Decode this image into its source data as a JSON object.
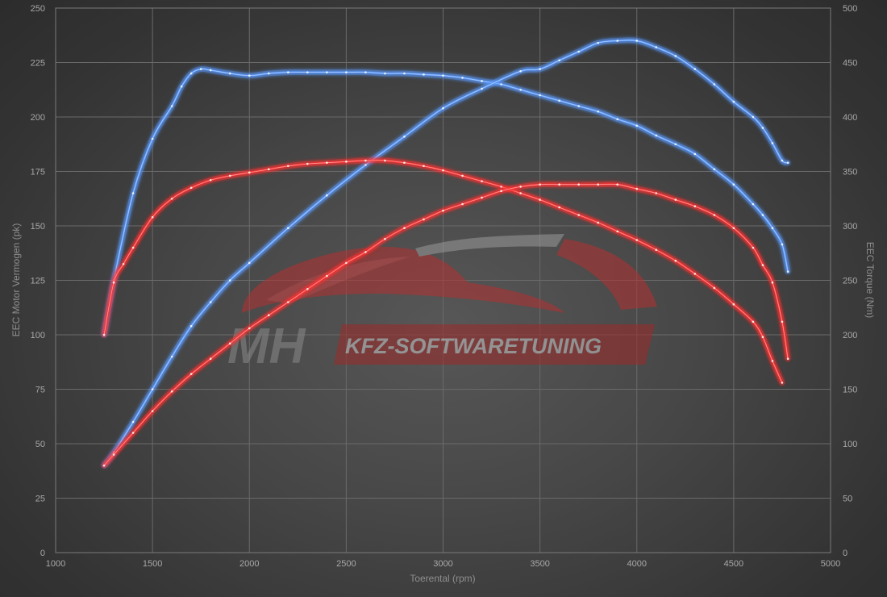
{
  "watermark": {
    "initials": "MH",
    "tagline": "KFZ-SOFTWARETUNING"
  },
  "chart_data": {
    "type": "line",
    "xlabel": "Toerental (rpm)",
    "ylabel_left": "EEC Motor Vermogen (pk)",
    "ylabel_right": "EEC Torque (Nm)",
    "xlim": [
      1000,
      5000
    ],
    "xticks": [
      1000,
      1500,
      2000,
      2500,
      3000,
      3500,
      4000,
      4500,
      5000
    ],
    "ylim_left": [
      0,
      250
    ],
    "yticks_left": [
      0,
      25,
      50,
      75,
      100,
      125,
      150,
      175,
      200,
      225,
      250
    ],
    "ylim_right": [
      0,
      500
    ],
    "yticks_right": [
      0,
      50,
      100,
      150,
      200,
      250,
      300,
      350,
      400,
      450,
      500
    ],
    "grid": true,
    "series": [
      {
        "color": "#5b9bff",
        "axis": "right",
        "x": [
          1250,
          1300,
          1400,
          1500,
          1600,
          1650,
          1700,
          1750,
          1800,
          1900,
          2000,
          2100,
          2200,
          2300,
          2400,
          2500,
          2600,
          2700,
          2800,
          2900,
          3000,
          3100,
          3200,
          3300,
          3400,
          3500,
          3600,
          3700,
          3800,
          3900,
          4000,
          4100,
          4200,
          4300,
          4400,
          4500,
          4600,
          4650,
          4700,
          4750,
          4780
        ],
        "y": [
          200,
          250,
          330,
          380,
          410,
          428,
          440,
          444,
          443,
          440,
          438,
          440,
          441,
          441,
          441,
          441,
          441,
          440,
          440,
          439,
          438,
          436,
          433,
          430,
          425,
          420,
          415,
          410,
          405,
          398,
          392,
          383,
          375,
          366,
          352,
          338,
          320,
          310,
          298,
          283,
          258
        ]
      },
      {
        "color": "#5b9bff",
        "axis": "left",
        "x": [
          1250,
          1300,
          1400,
          1500,
          1600,
          1700,
          1800,
          1900,
          2000,
          2200,
          2400,
          2600,
          2800,
          3000,
          3200,
          3400,
          3500,
          3600,
          3700,
          3800,
          3900,
          4000,
          4100,
          4200,
          4300,
          4400,
          4500,
          4600,
          4650,
          4700,
          4750,
          4780
        ],
        "y": [
          40,
          46,
          60,
          75,
          90,
          104,
          115,
          125,
          133,
          149,
          164,
          178,
          191,
          204,
          213,
          221,
          222,
          226,
          230,
          234,
          235,
          235,
          232,
          228,
          222,
          215,
          207,
          200,
          195,
          188,
          180,
          179
        ]
      },
      {
        "color": "#ff3535",
        "axis": "right",
        "x": [
          1250,
          1300,
          1350,
          1400,
          1500,
          1600,
          1700,
          1800,
          1900,
          2000,
          2100,
          2200,
          2300,
          2400,
          2500,
          2600,
          2700,
          2800,
          2900,
          3000,
          3100,
          3200,
          3300,
          3400,
          3500,
          3600,
          3700,
          3800,
          3900,
          4000,
          4100,
          4200,
          4300,
          4400,
          4500,
          4600,
          4650,
          4700,
          4750
        ],
        "y": [
          200,
          248,
          265,
          280,
          308,
          325,
          335,
          342,
          346,
          349,
          352,
          355,
          357,
          358,
          359,
          360,
          360,
          358,
          355,
          351,
          346,
          341,
          336,
          330,
          324,
          317,
          310,
          303,
          295,
          287,
          278,
          268,
          256,
          243,
          228,
          212,
          198,
          176,
          156
        ]
      },
      {
        "color": "#ff3535",
        "axis": "left",
        "x": [
          1250,
          1300,
          1400,
          1500,
          1600,
          1700,
          1800,
          1900,
          2000,
          2100,
          2200,
          2300,
          2400,
          2500,
          2600,
          2700,
          2800,
          2900,
          3000,
          3100,
          3200,
          3300,
          3400,
          3500,
          3600,
          3700,
          3800,
          3900,
          4000,
          4100,
          4200,
          4300,
          4400,
          4500,
          4600,
          4650,
          4700,
          4750,
          4780
        ],
        "y": [
          40,
          45,
          55,
          65,
          74,
          82,
          89,
          96,
          103,
          109,
          115,
          121,
          127,
          133,
          138,
          144,
          149,
          153,
          157,
          160,
          163,
          166,
          168,
          169,
          169,
          169,
          169,
          169,
          167,
          165,
          162,
          159,
          155,
          149,
          140,
          132,
          124,
          106,
          89
        ]
      }
    ]
  }
}
